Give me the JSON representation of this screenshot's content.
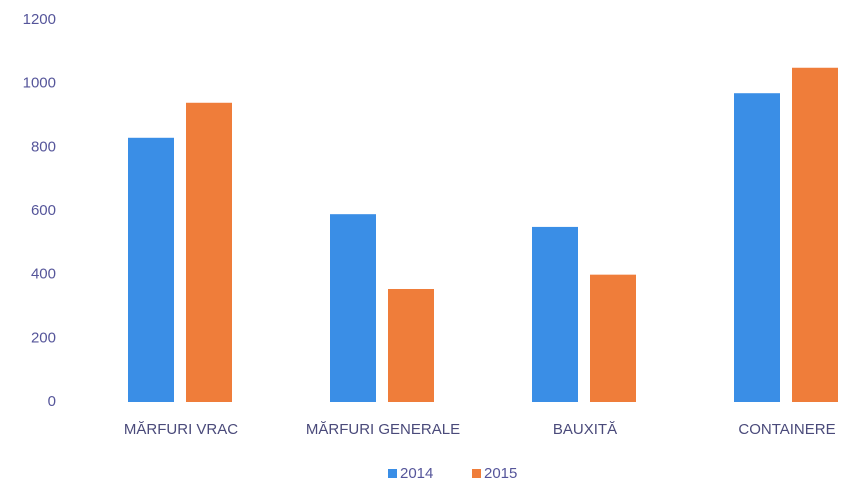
{
  "chart_data": {
    "type": "bar",
    "categories": [
      "MĂRFURI VRAC",
      "MĂRFURI GENERALE",
      "BAUXITĂ",
      "CONTAINERE"
    ],
    "series": [
      {
        "name": "2014",
        "color": "#3a8ee6",
        "values": [
          830,
          590,
          550,
          970
        ]
      },
      {
        "name": "2015",
        "color": "#ef7d3a",
        "values": [
          940,
          355,
          400,
          1050
        ]
      }
    ],
    "ylim": [
      0,
      1200
    ],
    "yticks": [
      0,
      200,
      400,
      600,
      800,
      1000,
      1200
    ],
    "grid": false,
    "legend": "bottom"
  }
}
